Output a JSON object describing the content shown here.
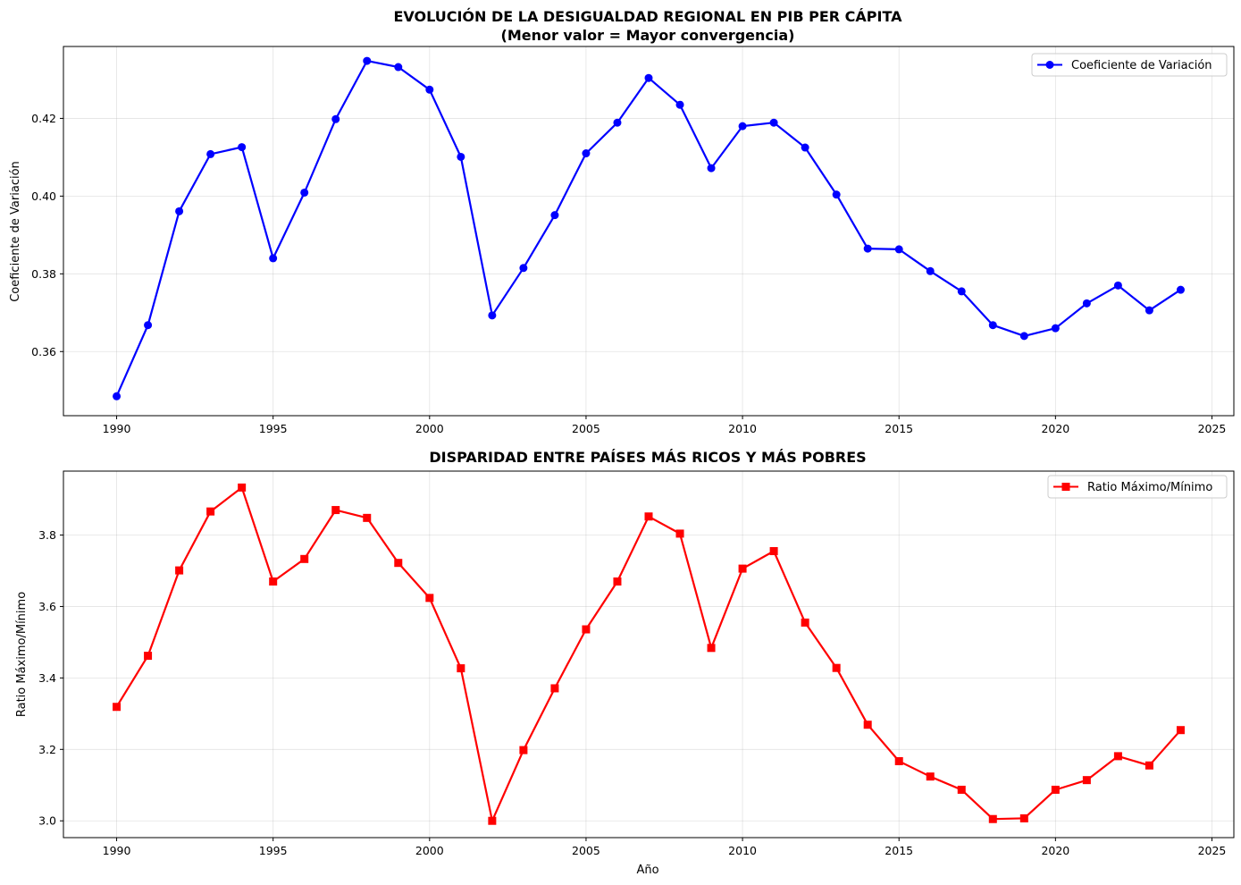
{
  "chart_data": [
    {
      "type": "line",
      "title_line1": "EVOLUCIÓN DE LA DESIGUALDAD REGIONAL EN PIB PER CÁPITA",
      "title_line2": "(Menor valor = Mayor convergencia)",
      "xlabel": "",
      "ylabel": "Coeficiente de Variación",
      "xlim": [
        1988.3,
        2025.7
      ],
      "ylim": [
        0.3435,
        0.4385
      ],
      "xticks": [
        1990,
        1995,
        2000,
        2005,
        2010,
        2015,
        2020,
        2025
      ],
      "yticks": [
        0.36,
        0.38,
        0.4,
        0.42
      ],
      "ytick_labels": [
        "0.36",
        "0.38",
        "0.40",
        "0.42"
      ],
      "grid": true,
      "legend_position": "top-right",
      "series": [
        {
          "name": "Coeficiente de Variación",
          "color": "#0000ff",
          "marker": "circle",
          "x": [
            1990,
            1991,
            1992,
            1993,
            1994,
            1995,
            1996,
            1997,
            1998,
            1999,
            2000,
            2001,
            2002,
            2003,
            2004,
            2005,
            2006,
            2007,
            2008,
            2009,
            2010,
            2011,
            2012,
            2013,
            2014,
            2015,
            2016,
            2017,
            2018,
            2019,
            2020,
            2021,
            2022,
            2023,
            2024
          ],
          "values": [
            0.3485,
            0.3668,
            0.3961,
            0.4108,
            0.4126,
            0.384,
            0.4009,
            0.4198,
            0.4348,
            0.4332,
            0.4274,
            0.4101,
            0.3693,
            0.3815,
            0.3951,
            0.411,
            0.4189,
            0.4304,
            0.4235,
            0.4072,
            0.418,
            0.4189,
            0.4125,
            0.4004,
            0.3865,
            0.3863,
            0.3807,
            0.3755,
            0.3668,
            0.364,
            0.366,
            0.3724,
            0.377,
            0.3706,
            0.3759
          ]
        }
      ]
    },
    {
      "type": "line",
      "title_line1": "DISPARIDAD ENTRE PAÍSES MÁS RICOS Y MÁS POBRES",
      "title_line2": "",
      "xlabel": "Año",
      "ylabel": "Ratio Máximo/Mínimo",
      "xlim": [
        1988.3,
        2025.7
      ],
      "ylim": [
        2.953,
        3.979
      ],
      "xticks": [
        1990,
        1995,
        2000,
        2005,
        2010,
        2015,
        2020,
        2025
      ],
      "yticks": [
        3.0,
        3.2,
        3.4,
        3.6,
        3.8
      ],
      "ytick_labels": [
        "3.0",
        "3.2",
        "3.4",
        "3.6",
        "3.8"
      ],
      "grid": true,
      "legend_position": "top-right",
      "series": [
        {
          "name": "Ratio Máximo/Mínimo",
          "color": "#ff0000",
          "marker": "square",
          "x": [
            1990,
            1991,
            1992,
            1993,
            1994,
            1995,
            1996,
            1997,
            1998,
            1999,
            2000,
            2001,
            2002,
            2003,
            2004,
            2005,
            2006,
            2007,
            2008,
            2009,
            2010,
            2011,
            2012,
            2013,
            2014,
            2015,
            2016,
            2017,
            2018,
            2019,
            2020,
            2021,
            2022,
            2023,
            2024
          ],
          "values": [
            3.319,
            3.462,
            3.701,
            3.866,
            3.933,
            3.67,
            3.733,
            3.87,
            3.848,
            3.722,
            3.624,
            3.427,
            3.0,
            3.198,
            3.371,
            3.536,
            3.67,
            3.852,
            3.804,
            3.484,
            3.706,
            3.755,
            3.555,
            3.428,
            3.269,
            3.167,
            3.124,
            3.087,
            3.005,
            3.007,
            3.087,
            3.114,
            3.181,
            3.155,
            3.254
          ]
        }
      ]
    }
  ]
}
